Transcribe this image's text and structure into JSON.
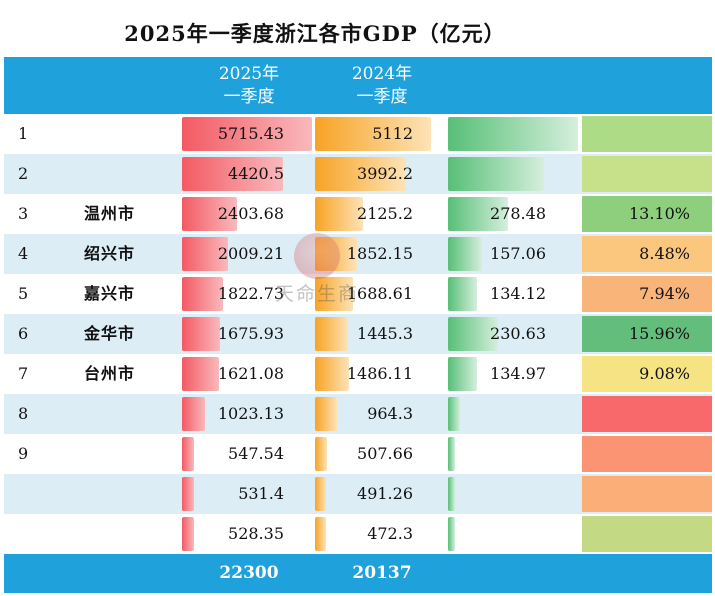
{
  "title": "2025年一季度浙江各市GDP（亿元）",
  "headers": {
    "col_2025_line1": "2025年",
    "col_2025_line2": "一季度",
    "col_2024_line1": "2024年",
    "col_2024_line2": "一季度"
  },
  "colors": {
    "header_bg": "#1fa2db",
    "bar_2025": "#f35a63",
    "bar_2024": "#f7a324",
    "bar_increase": "#57bf77"
  },
  "watermark": {
    "text": "天命生商"
  },
  "chart_data": {
    "type": "table",
    "columns": [
      "",
      "",
      "2025年一季度",
      "2024年一季度",
      "",
      ""
    ],
    "rows": [
      {
        "rank": "1",
        "city": "",
        "v2025": 5715.43,
        "v2025_text": "5715.43",
        "v2024": 5112,
        "v2024_text": "5112",
        "inc": null,
        "inc_text": "",
        "pct": null,
        "pct_text": "",
        "pct_color": "#aedb86"
      },
      {
        "rank": "2",
        "city": "",
        "v2025": 4420.5,
        "v2025_text": "4420.5",
        "v2024": 3992.2,
        "v2024_text": "3992.2",
        "inc": null,
        "inc_text": "",
        "pct": null,
        "pct_text": "",
        "pct_color": "#c7e08a"
      },
      {
        "rank": "3",
        "city": "温州市",
        "v2025": 2403.68,
        "v2025_text": "2403.68",
        "v2024": 2125.2,
        "v2024_text": "2125.2",
        "inc": 278.48,
        "inc_text": "278.48",
        "pct": 13.1,
        "pct_text": "13.10%",
        "pct_color": "#8dcf7c"
      },
      {
        "rank": "4",
        "city": "绍兴市",
        "v2025": 2009.21,
        "v2025_text": "2009.21",
        "v2024": 1852.15,
        "v2024_text": "1852.15",
        "inc": 157.06,
        "inc_text": "157.06",
        "pct": 8.48,
        "pct_text": "8.48%",
        "pct_color": "#fbc77e"
      },
      {
        "rank": "5",
        "city": "嘉兴市",
        "v2025": 1822.73,
        "v2025_text": "1822.73",
        "v2024": 1688.61,
        "v2024_text": "1688.61",
        "inc": 134.12,
        "inc_text": "134.12",
        "pct": 7.94,
        "pct_text": "7.94%",
        "pct_color": "#f9b47a"
      },
      {
        "rank": "6",
        "city": "金华市",
        "v2025": 1675.93,
        "v2025_text": "1675.93",
        "v2024": 1445.3,
        "v2024_text": "1445.3",
        "inc": 230.63,
        "inc_text": "230.63",
        "pct": 15.96,
        "pct_text": "15.96%",
        "pct_color": "#63be7b"
      },
      {
        "rank": "7",
        "city": "台州市",
        "v2025": 1621.08,
        "v2025_text": "1621.08",
        "v2024": 1486.11,
        "v2024_text": "1486.11",
        "inc": 134.97,
        "inc_text": "134.97",
        "pct": 9.08,
        "pct_text": "9.08%",
        "pct_color": "#f5e384"
      },
      {
        "rank": "8",
        "city": "",
        "v2025": 1023.13,
        "v2025_text": "1023.13",
        "v2024": 964.3,
        "v2024_text": "964.3",
        "inc": null,
        "inc_text": "",
        "pct": null,
        "pct_text": "",
        "pct_color": "#f8696b"
      },
      {
        "rank": "9",
        "city": "",
        "v2025": 547.54,
        "v2025_text": "547.54",
        "v2024": 507.66,
        "v2024_text": "507.66",
        "inc": null,
        "inc_text": "",
        "pct": null,
        "pct_text": "",
        "pct_color": "#fa9473"
      },
      {
        "rank": "",
        "city": "",
        "v2025": 531.4,
        "v2025_text": "531.4",
        "v2024": 491.26,
        "v2024_text": "491.26",
        "inc": null,
        "inc_text": "",
        "pct": null,
        "pct_text": "",
        "pct_color": "#fbae78"
      },
      {
        "rank": "",
        "city": "",
        "v2025": 528.35,
        "v2025_text": "528.35",
        "v2024": 472.3,
        "v2024_text": "472.3",
        "inc": null,
        "inc_text": "",
        "pct": null,
        "pct_text": "",
        "pct_color": "#c3d983"
      }
    ],
    "total": {
      "v2025_text": "22300",
      "v2024_text": "20137"
    },
    "scale": {
      "max_2025": 5715.43,
      "max_increase": 600
    }
  }
}
